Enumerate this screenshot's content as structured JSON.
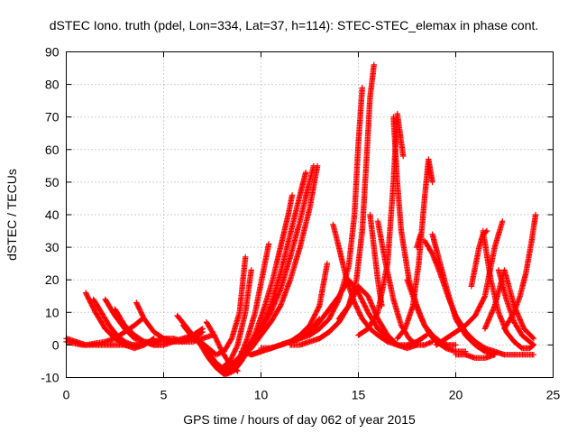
{
  "chart_data": {
    "type": "scatter",
    "title": "dSTEC Iono. truth (pdel, Lon=334, Lat=37, h=114): STEC-STEC_elemax in phase cont.",
    "xlabel": "GPS time / hours of day 062 of year 2015",
    "ylabel": "dSTEC  / TECUs",
    "xlim": [
      0,
      25
    ],
    "ylim": [
      -10,
      90
    ],
    "xticks": [
      0,
      5,
      10,
      15,
      20,
      25
    ],
    "yticks": [
      -10,
      0,
      10,
      20,
      30,
      40,
      50,
      60,
      70,
      80,
      90
    ],
    "grid": true,
    "marker": "plus",
    "color": "#ff0000",
    "series": [
      {
        "x": [
          0.0,
          0.5,
          1.0,
          1.5,
          2.0,
          2.5,
          3.0,
          3.5,
          3.9
        ],
        "y": [
          2,
          1,
          0,
          0.5,
          1,
          2,
          4,
          6,
          8
        ]
      },
      {
        "x": [
          0.0,
          0.4,
          0.8,
          1.2,
          1.6,
          2.0,
          2.4,
          2.8,
          3.2,
          3.6,
          4.0
        ],
        "y": [
          1,
          0.5,
          0,
          0,
          0,
          0,
          0,
          0,
          0,
          0,
          0
        ]
      },
      {
        "x": [
          1.0,
          1.5,
          2.0,
          2.5,
          3.0,
          3.5,
          4.0,
          4.5
        ],
        "y": [
          16,
          10,
          5,
          2,
          0,
          -1,
          0,
          2
        ]
      },
      {
        "x": [
          1.4,
          1.8,
          2.2,
          2.6,
          3.0,
          3.4,
          3.8
        ],
        "y": [
          14,
          10,
          6,
          3,
          1,
          0,
          0
        ]
      },
      {
        "x": [
          2.0,
          2.5,
          3.0,
          3.5,
          4.0,
          4.5,
          5.0
        ],
        "y": [
          14,
          9,
          5,
          2,
          1,
          0,
          0
        ]
      },
      {
        "x": [
          2.5,
          3.0,
          3.5,
          4.0,
          4.5,
          5.0,
          5.5
        ],
        "y": [
          11,
          6,
          3,
          1,
          0,
          0,
          1
        ]
      },
      {
        "x": [
          3.6,
          4.0,
          4.5,
          5.0,
          5.5,
          6.0,
          6.5,
          7.0
        ],
        "y": [
          13,
          8,
          4,
          2,
          1,
          1,
          2,
          4
        ]
      },
      {
        "x": [
          4.0,
          4.5,
          5.0,
          5.5,
          6.0,
          6.5,
          7.0
        ],
        "y": [
          1,
          1,
          1,
          1,
          2,
          3,
          5
        ]
      },
      {
        "x": [
          4.5,
          5.0,
          5.5,
          6.0,
          6.5,
          7.0,
          7.5
        ],
        "y": [
          1,
          2,
          2,
          1,
          1,
          2,
          3
        ]
      },
      {
        "x": [
          5.7,
          6.1,
          6.5,
          6.9,
          7.3,
          7.7,
          8.1,
          8.5,
          8.9,
          9.2
        ],
        "y": [
          9,
          6,
          3,
          1,
          -1,
          -3,
          -2,
          2,
          10,
          27
        ]
      },
      {
        "x": [
          6.0,
          6.4,
          6.8,
          7.2,
          7.6,
          8.0,
          8.4,
          8.8,
          9.2,
          9.5
        ],
        "y": [
          6,
          3,
          1,
          -2,
          -5,
          -7,
          -5,
          0,
          10,
          23
        ]
      },
      {
        "x": [
          6.5,
          6.9,
          7.3,
          7.7,
          8.1,
          8.5,
          8.9,
          9.3,
          9.7,
          10.1,
          10.4
        ],
        "y": [
          3,
          0,
          -4,
          -7,
          -9,
          -8,
          -4,
          2,
          10,
          22,
          31
        ]
      },
      {
        "x": [
          7.0,
          7.4,
          7.8,
          8.2,
          8.6,
          9.0,
          9.4,
          9.8,
          10.2,
          10.6,
          11.0,
          11.4,
          11.6
        ],
        "y": [
          0,
          -3,
          -7,
          -9,
          -8,
          -5,
          -1,
          5,
          12,
          20,
          30,
          40,
          46
        ]
      },
      {
        "x": [
          7.5,
          8.0,
          8.5,
          9.0,
          9.5,
          10.0,
          10.5,
          11.0,
          11.5,
          12.0,
          12.3
        ],
        "y": [
          -4,
          -8,
          -7,
          -4,
          0,
          5,
          12,
          22,
          34,
          46,
          53
        ]
      },
      {
        "x": [
          8.0,
          8.5,
          9.0,
          9.5,
          10.0,
          10.5,
          11.0,
          11.5,
          12.0,
          12.4,
          12.7
        ],
        "y": [
          -8,
          -6,
          -3,
          1,
          5,
          10,
          17,
          27,
          38,
          48,
          55
        ]
      },
      {
        "x": [
          8.5,
          9.0,
          9.5,
          10.0,
          10.5,
          11.0,
          11.5,
          12.0,
          12.5,
          12.9
        ],
        "y": [
          -7,
          -4,
          -1,
          3,
          7,
          12,
          20,
          30,
          42,
          55
        ]
      },
      {
        "x": [
          7.2,
          7.6,
          8.0,
          8.4,
          8.8
        ],
        "y": [
          7,
          3,
          -2,
          -6,
          -8
        ]
      },
      {
        "x": [
          9.0,
          9.5,
          10.0,
          10.5,
          11.0,
          11.5,
          12.0,
          12.5,
          13.0
        ],
        "y": [
          -2,
          -3,
          -2,
          -1,
          0,
          1,
          2,
          4,
          8
        ]
      },
      {
        "x": [
          9.5,
          10.0,
          10.5,
          11.0,
          11.5,
          12.0,
          12.5,
          13.0,
          13.4
        ],
        "y": [
          -3,
          -2,
          -1,
          0,
          1,
          3,
          6,
          12,
          25
        ]
      },
      {
        "x": [
          10.0,
          10.5,
          11.0,
          11.5,
          12.0,
          12.5,
          13.0,
          13.5,
          14.0,
          14.5
        ],
        "y": [
          -1,
          -1,
          0,
          1,
          2,
          4,
          7,
          11,
          15,
          20
        ]
      },
      {
        "x": [
          11.5,
          12.0,
          12.5,
          13.0,
          13.5,
          14.0,
          14.5,
          15.0
        ],
        "y": [
          0,
          0,
          1,
          2,
          4,
          7,
          12,
          18
        ]
      },
      {
        "x": [
          12.0,
          12.5,
          13.0,
          13.5,
          14.0,
          14.5,
          14.8,
          15.0,
          15.2
        ],
        "y": [
          2,
          3,
          5,
          8,
          14,
          24,
          40,
          62,
          79
        ]
      },
      {
        "x": [
          13.0,
          13.5,
          14.0,
          14.5,
          14.9,
          15.2,
          15.4,
          15.6,
          15.8
        ],
        "y": [
          2,
          4,
          7,
          12,
          20,
          35,
          55,
          76,
          86
        ]
      },
      {
        "x": [
          15.6,
          15.8,
          16.0,
          16.2
        ],
        "y": [
          40,
          30,
          20,
          12
        ]
      },
      {
        "x": [
          13.7,
          14.0,
          14.4,
          14.8,
          15.2,
          15.6,
          16.0,
          16.5,
          17.0,
          17.5,
          18.0,
          18.5
        ],
        "y": [
          37,
          30,
          20,
          13,
          8,
          5,
          3,
          1,
          0,
          0,
          1,
          3
        ]
      },
      {
        "x": [
          14.0,
          14.5,
          15.0,
          15.5,
          16.0,
          16.5,
          17.0
        ],
        "y": [
          8,
          12,
          18,
          15,
          8,
          3,
          0
        ]
      },
      {
        "x": [
          14.5,
          15.0,
          15.5,
          16.0,
          16.5,
          17.0,
          17.5,
          18.0
        ],
        "y": [
          20,
          16,
          10,
          5,
          2,
          0,
          -1,
          0
        ]
      },
      {
        "x": [
          15.0,
          15.5,
          16.0,
          16.5,
          16.8,
          17.0,
          17.3
        ],
        "y": [
          3,
          5,
          10,
          25,
          50,
          71,
          58
        ]
      },
      {
        "x": [
          16.0,
          16.4,
          16.8,
          17.2,
          17.6,
          18.0,
          18.4,
          18.8
        ],
        "y": [
          38,
          25,
          14,
          6,
          2,
          0,
          0,
          1
        ]
      },
      {
        "x": [
          16.8,
          17.0,
          17.2,
          17.6,
          18.0,
          18.4,
          18.8,
          19.2,
          19.6,
          20.0
        ],
        "y": [
          70,
          50,
          35,
          20,
          12,
          6,
          3,
          1,
          0,
          0
        ]
      },
      {
        "x": [
          17.5,
          17.8,
          18.1,
          18.4,
          18.7,
          19.0,
          19.5,
          20.0,
          20.5
        ],
        "y": [
          20,
          15,
          10,
          6,
          3,
          1,
          -1,
          -2,
          -2
        ]
      },
      {
        "x": [
          17.0,
          17.4,
          17.8,
          18.1,
          18.4,
          18.6,
          18.8
        ],
        "y": [
          2,
          5,
          12,
          25,
          45,
          57,
          50
        ]
      },
      {
        "x": [
          18.0,
          18.2
        ],
        "y": [
          30,
          34
        ]
      },
      {
        "x": [
          18.4,
          18.8,
          19.2,
          19.6,
          20.0,
          20.5,
          21.0,
          21.5,
          22.0,
          22.5,
          23.0,
          23.5,
          24.0
        ],
        "y": [
          32,
          28,
          22,
          15,
          9,
          4,
          1,
          -1,
          -2,
          -3,
          -3,
          -3,
          -3
        ]
      },
      {
        "x": [
          18.8,
          19.2,
          19.6,
          20.0,
          20.5,
          21.0,
          21.5,
          22.0
        ],
        "y": [
          34,
          25,
          16,
          8,
          3,
          0,
          -2,
          -3
        ]
      },
      {
        "x": [
          19.0,
          19.5,
          20.0,
          20.5,
          21.0,
          21.5,
          22.0,
          22.4
        ],
        "y": [
          0,
          2,
          4,
          6,
          9,
          15,
          30,
          38
        ]
      },
      {
        "x": [
          20.8,
          21.0,
          21.2,
          21.4,
          21.6
        ],
        "y": [
          18,
          24,
          30,
          34,
          35
        ]
      },
      {
        "x": [
          21.4,
          21.8,
          22.2,
          22.6,
          23.0,
          23.4,
          23.8,
          24.0
        ],
        "y": [
          35,
          20,
          10,
          4,
          1,
          -1,
          -1,
          0
        ]
      },
      {
        "x": [
          21.5,
          22.0,
          22.5,
          23.0,
          23.5,
          24.0
        ],
        "y": [
          5,
          12,
          23,
          12,
          5,
          2
        ]
      },
      {
        "x": [
          22.2,
          22.6,
          23.0,
          23.4,
          23.8,
          24.0
        ],
        "y": [
          23,
          14,
          7,
          3,
          1,
          0
        ]
      },
      {
        "x": [
          22.5,
          23.0,
          23.3,
          23.6,
          23.9,
          24.1
        ],
        "y": [
          5,
          10,
          15,
          22,
          32,
          40
        ]
      },
      {
        "x": [
          20.0,
          20.5,
          21.0,
          21.5,
          22.0
        ],
        "y": [
          -3,
          -3,
          -4,
          -4,
          -3
        ]
      }
    ]
  }
}
